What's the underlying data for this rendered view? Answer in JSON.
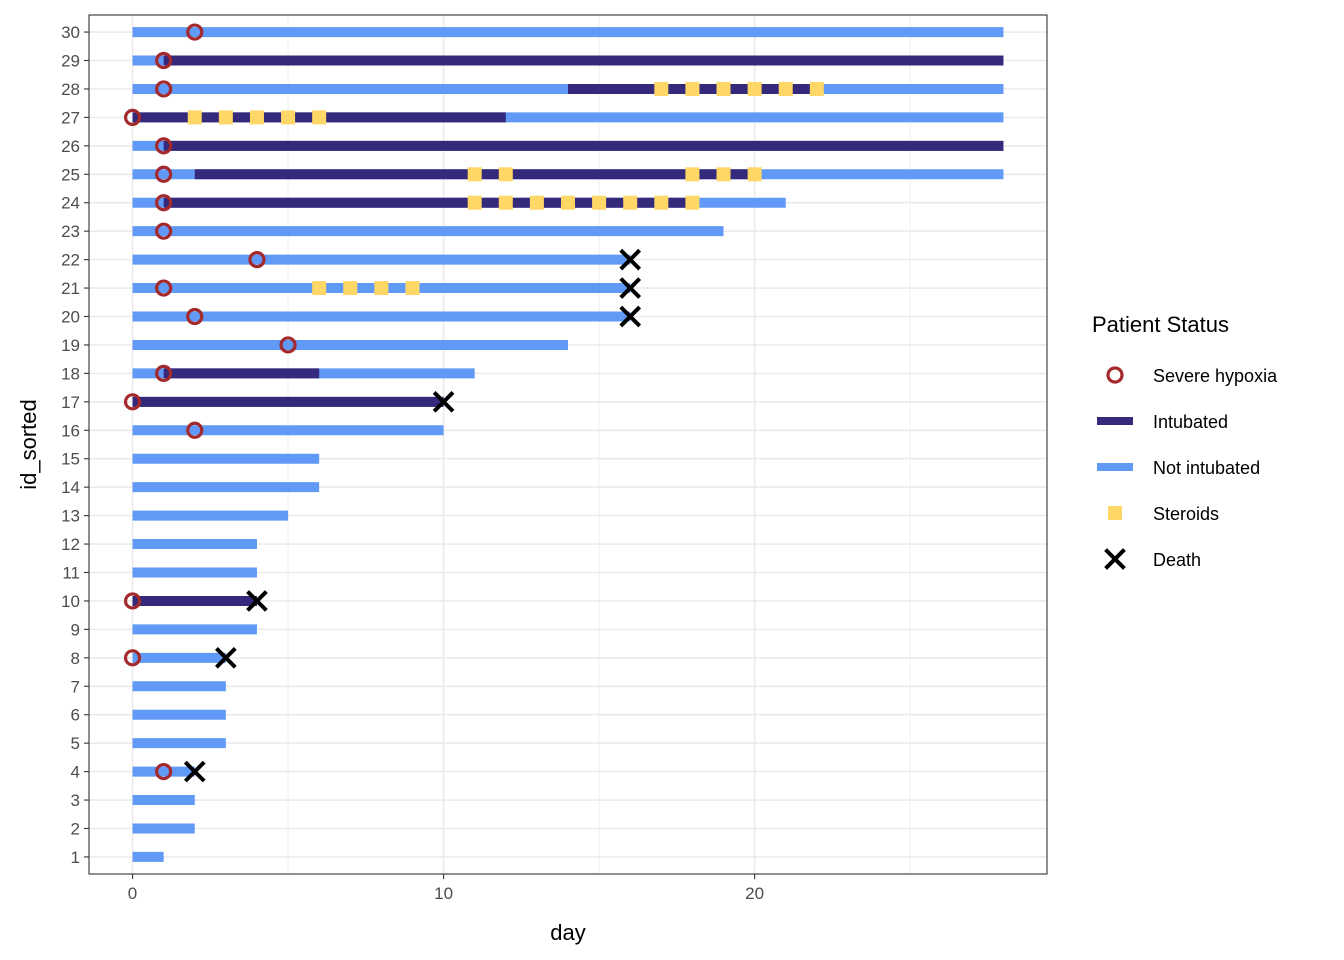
{
  "colors": {
    "hypoxia": "#A3292C",
    "intubated": "#34297A",
    "not_intubated": "#6199F7",
    "steroids": "#FED766",
    "death": "#000000",
    "grid": "#EBEBEB",
    "panel_border": "#333333"
  },
  "chart_data": {
    "type": "timeline",
    "xlabel": "day",
    "ylabel": "id_sorted",
    "xlim": [
      -1.4,
      29.4
    ],
    "ylim": [
      0.4,
      30.6
    ],
    "x_ticks": [
      0,
      10,
      20
    ],
    "y_ticks": [
      1,
      2,
      3,
      4,
      5,
      6,
      7,
      8,
      9,
      10,
      11,
      12,
      13,
      14,
      15,
      16,
      17,
      18,
      19,
      20,
      21,
      22,
      23,
      24,
      25,
      26,
      27,
      28,
      29,
      30
    ],
    "grid": true,
    "legend_position": "right",
    "legend": {
      "title": "Patient Status",
      "items": [
        {
          "key": "hypoxia",
          "label": "Severe hypoxia",
          "shape": "open-circle"
        },
        {
          "key": "intubated",
          "label": "Intubated",
          "shape": "line"
        },
        {
          "key": "not_intubated",
          "label": "Not intubated",
          "shape": "line"
        },
        {
          "key": "steroids",
          "label": "Steroids",
          "shape": "square"
        },
        {
          "key": "death",
          "label": "Death",
          "shape": "cross"
        }
      ]
    },
    "patients": [
      {
        "id": 1,
        "end": 1,
        "intubated": [],
        "hypoxia": null,
        "steroids": [],
        "death": null
      },
      {
        "id": 2,
        "end": 2,
        "intubated": [],
        "hypoxia": null,
        "steroids": [],
        "death": null
      },
      {
        "id": 3,
        "end": 2,
        "intubated": [],
        "hypoxia": null,
        "steroids": [],
        "death": null
      },
      {
        "id": 4,
        "end": 2,
        "intubated": [],
        "hypoxia": 1,
        "steroids": [],
        "death": 2
      },
      {
        "id": 5,
        "end": 3,
        "intubated": [],
        "hypoxia": null,
        "steroids": [],
        "death": null
      },
      {
        "id": 6,
        "end": 3,
        "intubated": [],
        "hypoxia": null,
        "steroids": [],
        "death": null
      },
      {
        "id": 7,
        "end": 3,
        "intubated": [],
        "hypoxia": null,
        "steroids": [],
        "death": null
      },
      {
        "id": 8,
        "end": 3,
        "intubated": [],
        "hypoxia": 0,
        "steroids": [],
        "death": 3
      },
      {
        "id": 9,
        "end": 4,
        "intubated": [],
        "hypoxia": null,
        "steroids": [],
        "death": null
      },
      {
        "id": 10,
        "end": 4,
        "intubated": [
          [
            0,
            4
          ]
        ],
        "hypoxia": 0,
        "steroids": [],
        "death": 4
      },
      {
        "id": 11,
        "end": 4,
        "intubated": [],
        "hypoxia": null,
        "steroids": [],
        "death": null
      },
      {
        "id": 12,
        "end": 4,
        "intubated": [],
        "hypoxia": null,
        "steroids": [],
        "death": null
      },
      {
        "id": 13,
        "end": 5,
        "intubated": [],
        "hypoxia": null,
        "steroids": [],
        "death": null
      },
      {
        "id": 14,
        "end": 6,
        "intubated": [],
        "hypoxia": null,
        "steroids": [],
        "death": null
      },
      {
        "id": 15,
        "end": 6,
        "intubated": [],
        "hypoxia": null,
        "steroids": [],
        "death": null
      },
      {
        "id": 16,
        "end": 10,
        "intubated": [],
        "hypoxia": 2,
        "steroids": [],
        "death": null
      },
      {
        "id": 17,
        "end": 10,
        "intubated": [
          [
            0,
            10
          ]
        ],
        "hypoxia": 0,
        "steroids": [],
        "death": 10
      },
      {
        "id": 18,
        "end": 11,
        "intubated": [
          [
            1,
            6
          ]
        ],
        "hypoxia": 1,
        "steroids": [],
        "death": null
      },
      {
        "id": 19,
        "end": 14,
        "intubated": [],
        "hypoxia": 5,
        "steroids": [],
        "death": null
      },
      {
        "id": 20,
        "end": 16,
        "intubated": [],
        "hypoxia": 2,
        "steroids": [],
        "death": 16
      },
      {
        "id": 21,
        "end": 16,
        "intubated": [],
        "hypoxia": 1,
        "steroids": [
          6,
          7,
          8,
          9
        ],
        "death": 16
      },
      {
        "id": 22,
        "end": 16,
        "intubated": [],
        "hypoxia": 4,
        "steroids": [],
        "death": 16
      },
      {
        "id": 23,
        "end": 19,
        "intubated": [],
        "hypoxia": 1,
        "steroids": [],
        "death": null
      },
      {
        "id": 24,
        "end": 21,
        "intubated": [
          [
            1,
            18
          ]
        ],
        "hypoxia": 1,
        "steroids": [
          11,
          12,
          13,
          14,
          15,
          16,
          17,
          18
        ],
        "death": null
      },
      {
        "id": 25,
        "end": 28,
        "intubated": [
          [
            2,
            20
          ]
        ],
        "hypoxia": 1,
        "steroids": [
          11,
          12,
          18,
          19,
          20
        ],
        "death": null
      },
      {
        "id": 26,
        "end": 28,
        "intubated": [
          [
            1,
            28
          ]
        ],
        "hypoxia": 1,
        "steroids": [],
        "death": null
      },
      {
        "id": 27,
        "end": 28,
        "intubated": [
          [
            0,
            12
          ]
        ],
        "hypoxia": 0,
        "steroids": [
          2,
          3,
          4,
          5,
          6
        ],
        "death": null
      },
      {
        "id": 28,
        "end": 28,
        "intubated": [
          [
            14,
            22
          ]
        ],
        "hypoxia": 1,
        "steroids": [
          17,
          18,
          19,
          20,
          21,
          22
        ],
        "death": null
      },
      {
        "id": 29,
        "end": 28,
        "intubated": [
          [
            1,
            28
          ]
        ],
        "hypoxia": 1,
        "steroids": [],
        "death": null
      },
      {
        "id": 30,
        "end": 28,
        "intubated": [],
        "hypoxia": 2,
        "steroids": [],
        "death": null
      }
    ]
  }
}
